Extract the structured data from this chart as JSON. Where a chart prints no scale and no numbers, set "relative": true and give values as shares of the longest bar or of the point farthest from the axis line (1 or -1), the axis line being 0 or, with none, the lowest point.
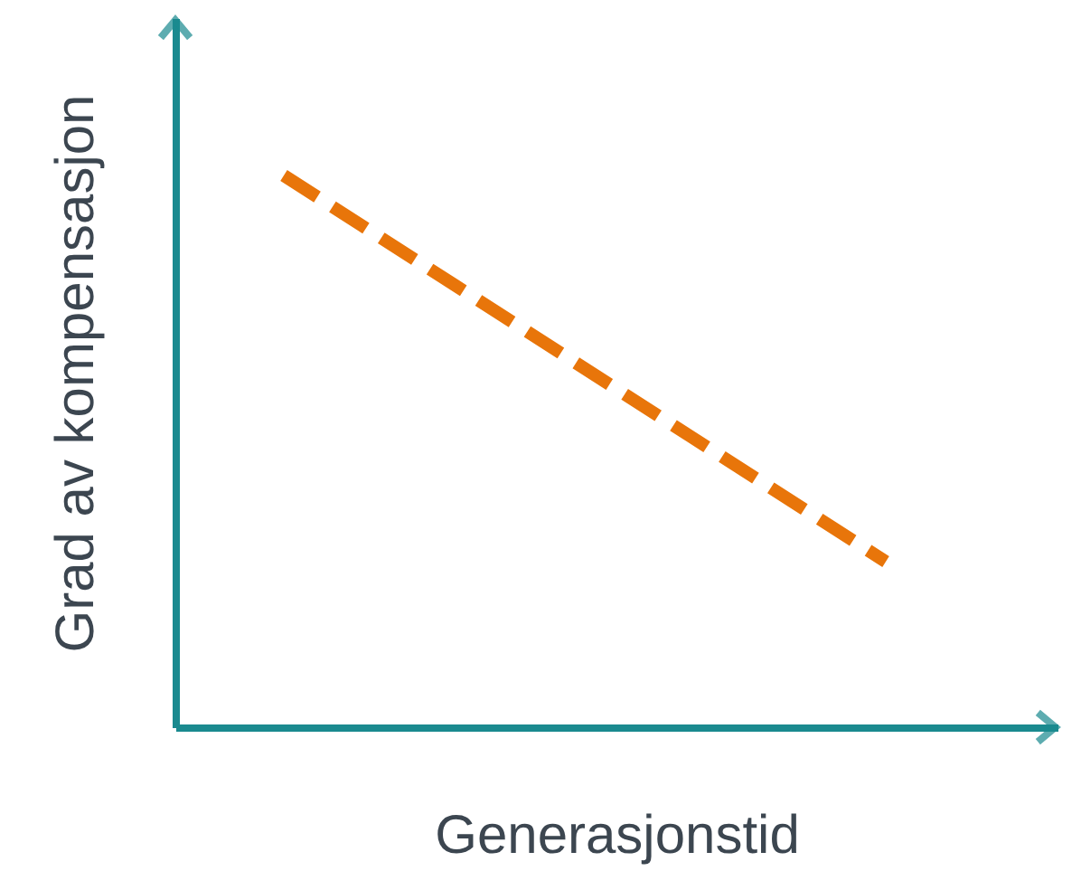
{
  "chart_data": {
    "type": "line",
    "relative": true,
    "categories": [
      null,
      null
    ],
    "values": [
      1,
      0.3
    ],
    "color": "#e8750a",
    "line_style": "dashed",
    "xlabel": "Generasjonstid",
    "ylabel": "Grad av kompensasjon"
  }
}
